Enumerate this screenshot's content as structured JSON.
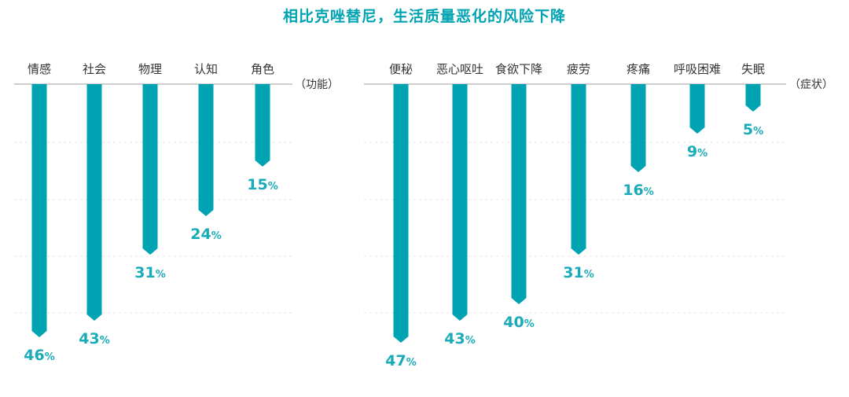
{
  "title": "相比克唑替尼，生活质量恶化的风险下降",
  "colors": {
    "accent": "#00a3b1",
    "label": "#1aabb8",
    "axis": "#bdbdbd",
    "grid": "#e3e3e3"
  },
  "chart_data": [
    {
      "type": "bar",
      "orientation": "downward",
      "unit_label": "（功能）",
      "categories": [
        "情感",
        "社会",
        "物理",
        "认知",
        "角色"
      ],
      "values": [
        46,
        43,
        31,
        24,
        15
      ],
      "value_suffix": "%",
      "ylim": [
        0,
        50
      ]
    },
    {
      "type": "bar",
      "orientation": "downward",
      "unit_label": "（症状）",
      "categories": [
        "便秘",
        "恶心呕吐",
        "食欲下降",
        "疲劳",
        "疼痛",
        "呼吸困难",
        "失眠"
      ],
      "values": [
        47,
        43,
        40,
        31,
        16,
        9,
        5
      ],
      "value_suffix": "%",
      "ylim": [
        0,
        50
      ]
    }
  ]
}
